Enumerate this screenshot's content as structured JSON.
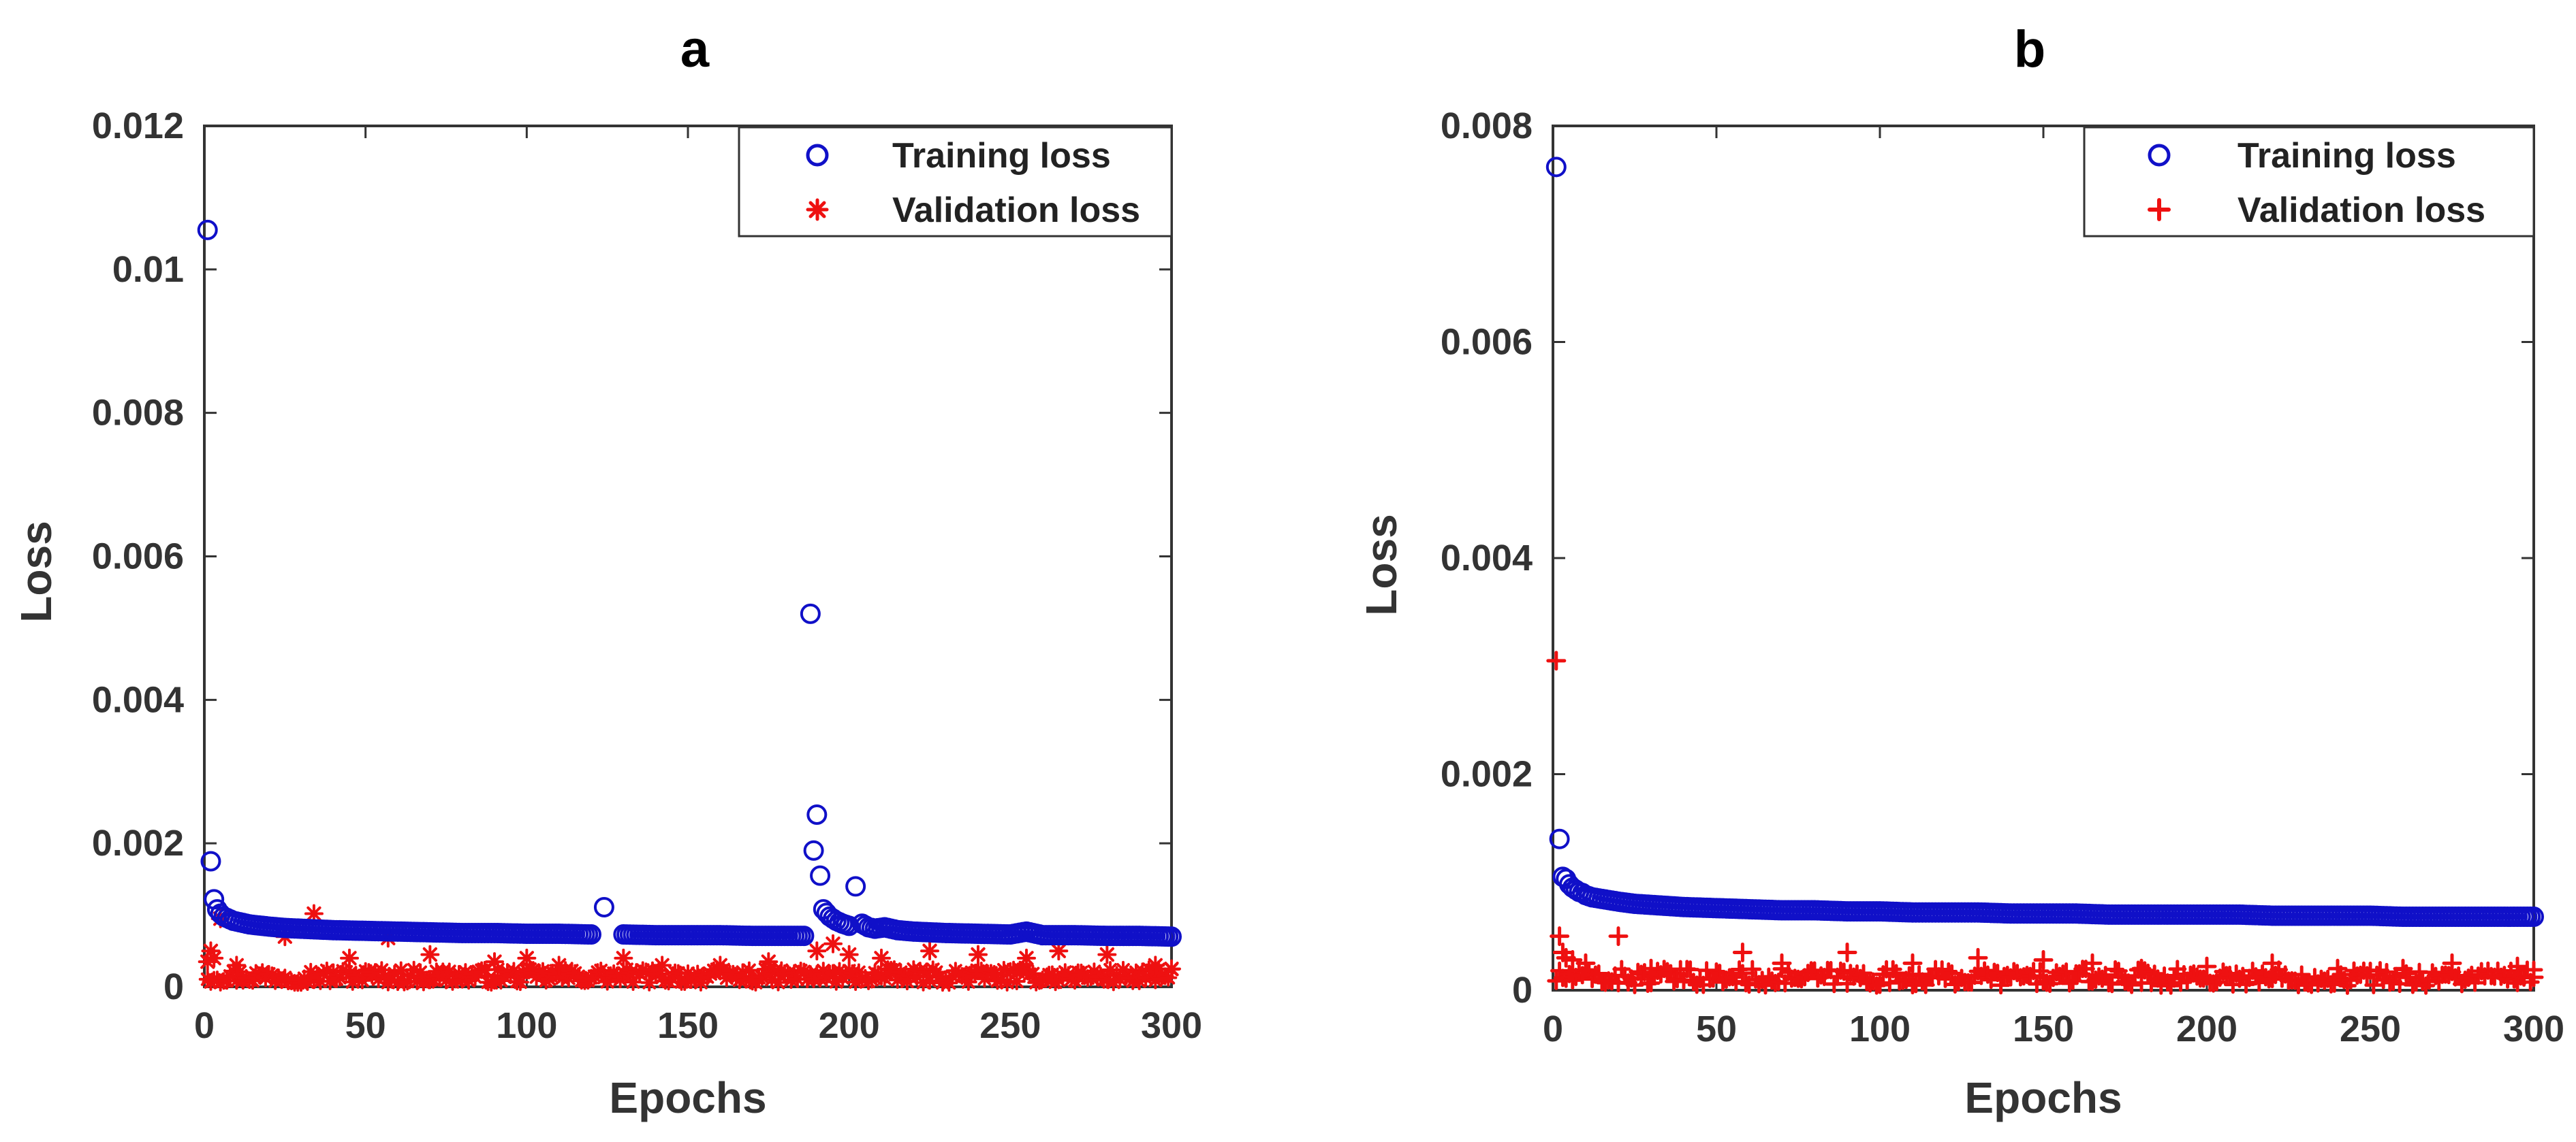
{
  "chart_data": [
    {
      "type": "scatter",
      "title": "a",
      "xlabel": "Epochs",
      "ylabel": "Loss",
      "xlim": [
        0,
        300
      ],
      "ylim": [
        0,
        0.012
      ],
      "xticks": [
        "0",
        "50",
        "100",
        "150",
        "200",
        "250",
        "300"
      ],
      "yticks": [
        "0",
        "0.002",
        "0.004",
        "0.006",
        "0.008",
        "0.01",
        "0.012"
      ],
      "legend": {
        "placement": "top-right",
        "entries": [
          "Training loss",
          "Validation loss"
        ]
      },
      "series": [
        {
          "name": "Training loss",
          "marker": "circle",
          "color": "#1010c8",
          "points": [
            [
              1,
              0.01055
            ],
            [
              2,
              0.00175
            ],
            [
              3,
              0.00122
            ],
            [
              4,
              0.00108
            ],
            [
              5,
              0.00102
            ],
            [
              6,
              0.00098
            ],
            [
              7,
              0.00096
            ],
            [
              8,
              0.00094
            ],
            [
              9,
              0.00092
            ],
            [
              10,
              0.00091
            ],
            [
              12,
              0.00089
            ],
            [
              14,
              0.00087
            ],
            [
              16,
              0.00086
            ],
            [
              18,
              0.00085
            ],
            [
              20,
              0.00084
            ],
            [
              25,
              0.00082
            ],
            [
              30,
              0.00081
            ],
            [
              40,
              0.00079
            ],
            [
              50,
              0.00078
            ],
            [
              60,
              0.00077
            ],
            [
              70,
              0.00076
            ],
            [
              80,
              0.00075
            ],
            [
              90,
              0.00075
            ],
            [
              100,
              0.00074
            ],
            [
              110,
              0.00074
            ],
            [
              120,
              0.00073
            ],
            [
              124,
              0.00111
            ],
            [
              130,
              0.00073
            ],
            [
              140,
              0.00072
            ],
            [
              150,
              0.00072
            ],
            [
              160,
              0.00072
            ],
            [
              170,
              0.00071
            ],
            [
              180,
              0.00071
            ],
            [
              186,
              0.00071
            ],
            [
              188,
              0.0052
            ],
            [
              189,
              0.0019
            ],
            [
              190,
              0.0024
            ],
            [
              191,
              0.00155
            ],
            [
              192,
              0.00108
            ],
            [
              193,
              0.00103
            ],
            [
              194,
              0.00098
            ],
            [
              196,
              0.00092
            ],
            [
              198,
              0.00088
            ],
            [
              200,
              0.00085
            ],
            [
              202,
              0.0014
            ],
            [
              204,
              0.00088
            ],
            [
              206,
              0.00083
            ],
            [
              208,
              0.00081
            ],
            [
              211,
              0.00083
            ],
            [
              215,
              0.00079
            ],
            [
              220,
              0.00077
            ],
            [
              230,
              0.00075
            ],
            [
              240,
              0.00074
            ],
            [
              250,
              0.00073
            ],
            [
              255,
              0.00077
            ],
            [
              260,
              0.00072
            ],
            [
              270,
              0.00072
            ],
            [
              280,
              0.00071
            ],
            [
              290,
              0.00071
            ],
            [
              300,
              0.0007
            ]
          ]
        },
        {
          "name": "Validation loss",
          "marker": "star",
          "color": "#ee1111",
          "baseline": 0.00015,
          "spikes": [
            [
              1,
              0.00035
            ],
            [
              2,
              0.0005
            ],
            [
              3,
              0.0004
            ],
            [
              5,
              0.00095
            ],
            [
              10,
              0.0003
            ],
            [
              25,
              0.0007
            ],
            [
              34,
              0.00102
            ],
            [
              45,
              0.0004
            ],
            [
              57,
              0.00068
            ],
            [
              70,
              0.00045
            ],
            [
              90,
              0.00035
            ],
            [
              100,
              0.0004
            ],
            [
              110,
              0.0003
            ],
            [
              130,
              0.0004
            ],
            [
              142,
              0.0003
            ],
            [
              160,
              0.0003
            ],
            [
              175,
              0.00035
            ],
            [
              190,
              0.0005
            ],
            [
              195,
              0.0006
            ],
            [
              200,
              0.00045
            ],
            [
              210,
              0.0004
            ],
            [
              225,
              0.0005
            ],
            [
              240,
              0.00045
            ],
            [
              255,
              0.0004
            ],
            [
              265,
              0.0005
            ],
            [
              280,
              0.00045
            ],
            [
              295,
              0.0003
            ],
            [
              300,
              0.00025
            ]
          ]
        }
      ]
    },
    {
      "type": "scatter",
      "title": "b",
      "xlabel": "Epochs",
      "ylabel": "Loss",
      "xlim": [
        0,
        300
      ],
      "ylim": [
        0,
        0.008
      ],
      "xticks": [
        "0",
        "50",
        "100",
        "150",
        "200",
        "250",
        "300"
      ],
      "yticks": [
        "0",
        "0.002",
        "0.004",
        "0.006",
        "0.008"
      ],
      "legend": {
        "placement": "top-right",
        "entries": [
          "Training loss",
          "Validation loss"
        ]
      },
      "series": [
        {
          "name": "Training loss",
          "marker": "circle",
          "color": "#1010c8",
          "points": [
            [
              1,
              0.00762
            ],
            [
              2,
              0.0014
            ],
            [
              3,
              0.00105
            ],
            [
              4,
              0.00103
            ],
            [
              5,
              0.00098
            ],
            [
              6,
              0.00095
            ],
            [
              7,
              0.00093
            ],
            [
              8,
              0.00091
            ],
            [
              9,
              0.0009
            ],
            [
              10,
              0.00088
            ],
            [
              12,
              0.00086
            ],
            [
              14,
              0.00085
            ],
            [
              16,
              0.00084
            ],
            [
              18,
              0.00083
            ],
            [
              20,
              0.00082
            ],
            [
              25,
              0.0008
            ],
            [
              30,
              0.00079
            ],
            [
              40,
              0.00077
            ],
            [
              50,
              0.00076
            ],
            [
              60,
              0.00075
            ],
            [
              70,
              0.00074
            ],
            [
              80,
              0.00074
            ],
            [
              90,
              0.00073
            ],
            [
              100,
              0.00073
            ],
            [
              110,
              0.00072
            ],
            [
              120,
              0.00072
            ],
            [
              130,
              0.00072
            ],
            [
              140,
              0.00071
            ],
            [
              150,
              0.00071
            ],
            [
              160,
              0.00071
            ],
            [
              170,
              0.0007
            ],
            [
              180,
              0.0007
            ],
            [
              190,
              0.0007
            ],
            [
              200,
              0.0007
            ],
            [
              210,
              0.0007
            ],
            [
              220,
              0.00069
            ],
            [
              230,
              0.00069
            ],
            [
              240,
              0.00069
            ],
            [
              250,
              0.00069
            ],
            [
              260,
              0.00068
            ],
            [
              270,
              0.00068
            ],
            [
              280,
              0.00068
            ],
            [
              290,
              0.00068
            ],
            [
              300,
              0.00068
            ]
          ]
        },
        {
          "name": "Validation loss",
          "marker": "plus",
          "color": "#ee1111",
          "baseline": 0.00012,
          "spikes": [
            [
              1,
              0.00305
            ],
            [
              2,
              0.0005
            ],
            [
              3,
              0.00035
            ],
            [
              4,
              0.0003
            ],
            [
              6,
              0.00028
            ],
            [
              10,
              0.00025
            ],
            [
              20,
              0.0005
            ],
            [
              30,
              0.0002
            ],
            [
              58,
              0.00035
            ],
            [
              70,
              0.00025
            ],
            [
              90,
              0.00035
            ],
            [
              110,
              0.00025
            ],
            [
              130,
              0.0003
            ],
            [
              150,
              0.00028
            ],
            [
              165,
              0.00025
            ],
            [
              180,
              0.0002
            ],
            [
              200,
              0.00022
            ],
            [
              220,
              0.00025
            ],
            [
              240,
              0.0002
            ],
            [
              260,
              0.0002
            ],
            [
              275,
              0.00025
            ],
            [
              295,
              0.00022
            ],
            [
              300,
              0.00012
            ]
          ]
        }
      ]
    }
  ]
}
